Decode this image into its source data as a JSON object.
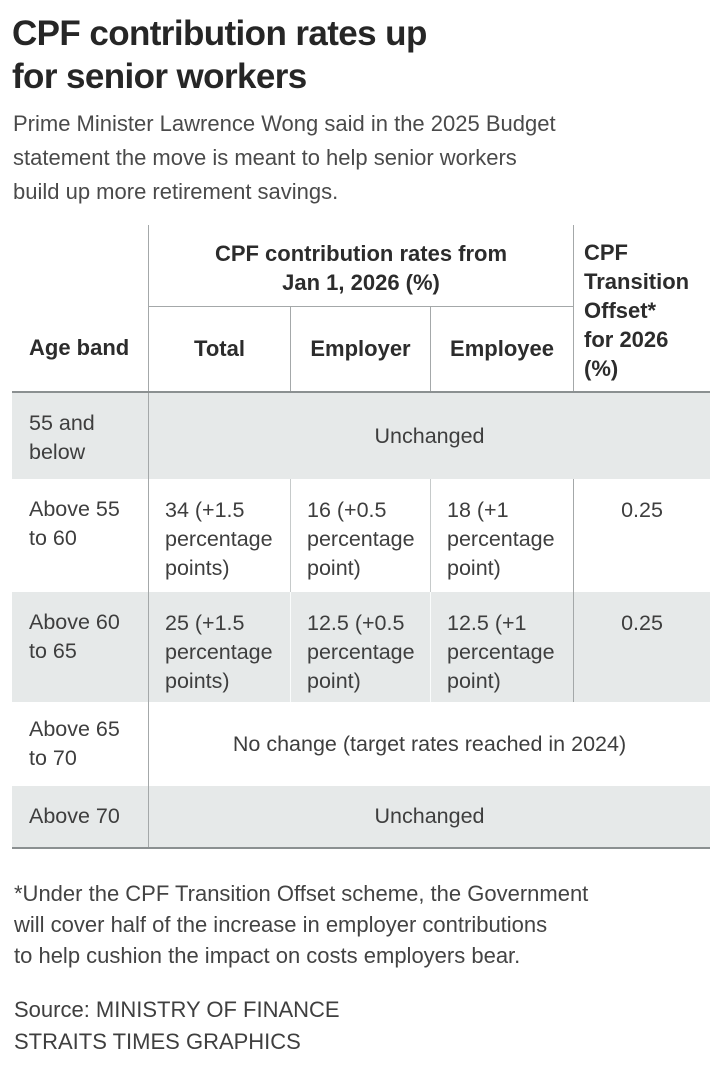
{
  "colors": {
    "row_shade": "#e6e9e9",
    "line_dark": "#8b9091",
    "line_mid": "#a4a8a9",
    "line_light": "#c6caca"
  },
  "header": {
    "title": [
      "CPF contribution rates up",
      "for senior workers"
    ],
    "intro": [
      "Prime Minister Lawrence Wong said in the 2025 Budget",
      "statement the move is meant to help senior workers",
      "build up more retirement savings."
    ]
  },
  "table": {
    "group_header": "CPF contribution rates from\nJan 1, 2026 (%)",
    "col_age": "Age band",
    "col_total": "Total",
    "col_employer": "Employer",
    "col_employee": "Employee",
    "col_offset": "CPF\nTransition\nOffset*\nfor 2026\n(%)",
    "rows": [
      {
        "age_band": "55 and\nbelow",
        "merged": "Unchanged"
      },
      {
        "age_band": "Above 55\nto 60",
        "total": "34 (+1.5\npercentage\npoints)",
        "employer": "16 (+0.5\npercentage\npoint)",
        "employee": "18 (+1\npercentage\npoint)",
        "offset": "0.25"
      },
      {
        "age_band": "Above 60\nto 65",
        "total": "25 (+1.5\npercentage\npoints)",
        "employer": "12.5 (+0.5\npercentage\npoint)",
        "employee": "12.5 (+1\npercentage\npoint)",
        "offset": "0.25"
      },
      {
        "age_band": "Above 65\nto 70",
        "merged": "No change (target rates reached in 2024)"
      },
      {
        "age_band": "Above 70",
        "merged": "Unchanged"
      }
    ]
  },
  "footnote": [
    "*Under the CPF Transition Offset scheme, the Government",
    "will cover half of the increase in employer contributions",
    "to help cushion the impact on costs employers bear."
  ],
  "source": [
    "Source: MINISTRY OF FINANCE",
    "STRAITS TIMES GRAPHICS"
  ]
}
